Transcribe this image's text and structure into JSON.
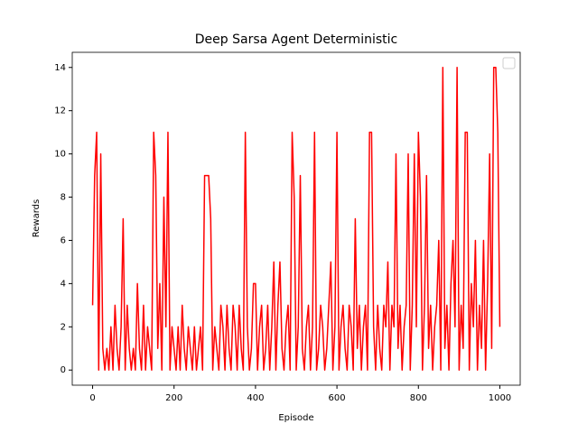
{
  "chart_data": {
    "type": "line",
    "title": "Deep Sarsa Agent Deterministic",
    "x_label": "Episode",
    "y_label": "Rewards",
    "xlim": [
      -50,
      1050
    ],
    "ylim": [
      -0.7,
      14.7
    ],
    "xticks": [
      0,
      200,
      400,
      600,
      800,
      1000
    ],
    "yticks": [
      0,
      2,
      4,
      6,
      8,
      10,
      12,
      14
    ],
    "x": [
      0,
      5,
      10,
      15,
      20,
      25,
      30,
      35,
      40,
      45,
      50,
      55,
      60,
      65,
      70,
      75,
      80,
      85,
      90,
      95,
      100,
      105,
      110,
      115,
      120,
      125,
      130,
      135,
      140,
      145,
      150,
      155,
      160,
      165,
      170,
      175,
      180,
      185,
      190,
      195,
      200,
      205,
      210,
      215,
      220,
      225,
      230,
      235,
      240,
      245,
      250,
      255,
      260,
      265,
      270,
      275,
      280,
      285,
      290,
      295,
      300,
      305,
      310,
      315,
      320,
      325,
      330,
      335,
      340,
      345,
      350,
      355,
      360,
      365,
      370,
      375,
      380,
      385,
      390,
      395,
      400,
      405,
      410,
      415,
      420,
      425,
      430,
      435,
      440,
      445,
      450,
      455,
      460,
      465,
      470,
      475,
      480,
      485,
      490,
      495,
      500,
      505,
      510,
      515,
      520,
      525,
      530,
      535,
      540,
      545,
      550,
      555,
      560,
      565,
      570,
      575,
      580,
      585,
      590,
      595,
      600,
      605,
      610,
      615,
      620,
      625,
      630,
      635,
      640,
      645,
      650,
      655,
      660,
      665,
      670,
      675,
      680,
      685,
      690,
      695,
      700,
      705,
      710,
      715,
      720,
      725,
      730,
      735,
      740,
      745,
      750,
      755,
      760,
      765,
      770,
      775,
      780,
      785,
      790,
      795,
      800,
      805,
      810,
      815,
      820,
      825,
      830,
      835,
      840,
      845,
      850,
      855,
      860,
      865,
      870,
      875,
      880,
      885,
      890,
      895,
      900,
      905,
      910,
      915,
      920,
      925,
      930,
      935,
      940,
      945,
      950,
      955,
      960,
      965,
      970,
      975,
      980,
      985,
      990,
      995,
      1000
    ],
    "series": [
      {
        "color": "#ff0000",
        "values": [
          3,
          9,
          11,
          0,
          10,
          1,
          0,
          1,
          0,
          2,
          0,
          3,
          1,
          0,
          2,
          7,
          0,
          3,
          1,
          0,
          1,
          0,
          4,
          1,
          0,
          3,
          0,
          2,
          1,
          0,
          11,
          9,
          1,
          4,
          0,
          8,
          2,
          11,
          0,
          2,
          1,
          0,
          2,
          0,
          3,
          1,
          0,
          2,
          1,
          0,
          2,
          0,
          1,
          2,
          0,
          9,
          9,
          9,
          7,
          0,
          2,
          1,
          0,
          3,
          2,
          0,
          3,
          1,
          0,
          3,
          2,
          0,
          3,
          1,
          0,
          11,
          2,
          0,
          1,
          4,
          4,
          0,
          2,
          3,
          0,
          1,
          3,
          0,
          2,
          5,
          0,
          3,
          5,
          1,
          0,
          2,
          3,
          0,
          11,
          8,
          0,
          2,
          9,
          1,
          0,
          2,
          3,
          0,
          2,
          11,
          0,
          1,
          3,
          2,
          0,
          1,
          3,
          5,
          0,
          2,
          11,
          0,
          2,
          3,
          1,
          0,
          3,
          2,
          0,
          7,
          1,
          3,
          0,
          2,
          3,
          0,
          11,
          11,
          2,
          0,
          3,
          1,
          0,
          3,
          2,
          5,
          0,
          3,
          2,
          10,
          1,
          3,
          0,
          2,
          3,
          10,
          0,
          3,
          10,
          2,
          11,
          8,
          0,
          3,
          9,
          1,
          3,
          0,
          2,
          3,
          6,
          0,
          14,
          1,
          3,
          0,
          4,
          6,
          2,
          14,
          0,
          3,
          1,
          11,
          11,
          0,
          4,
          2,
          6,
          0,
          3,
          1,
          6,
          0,
          4,
          10,
          1,
          14,
          14,
          11,
          2
        ]
      }
    ]
  }
}
